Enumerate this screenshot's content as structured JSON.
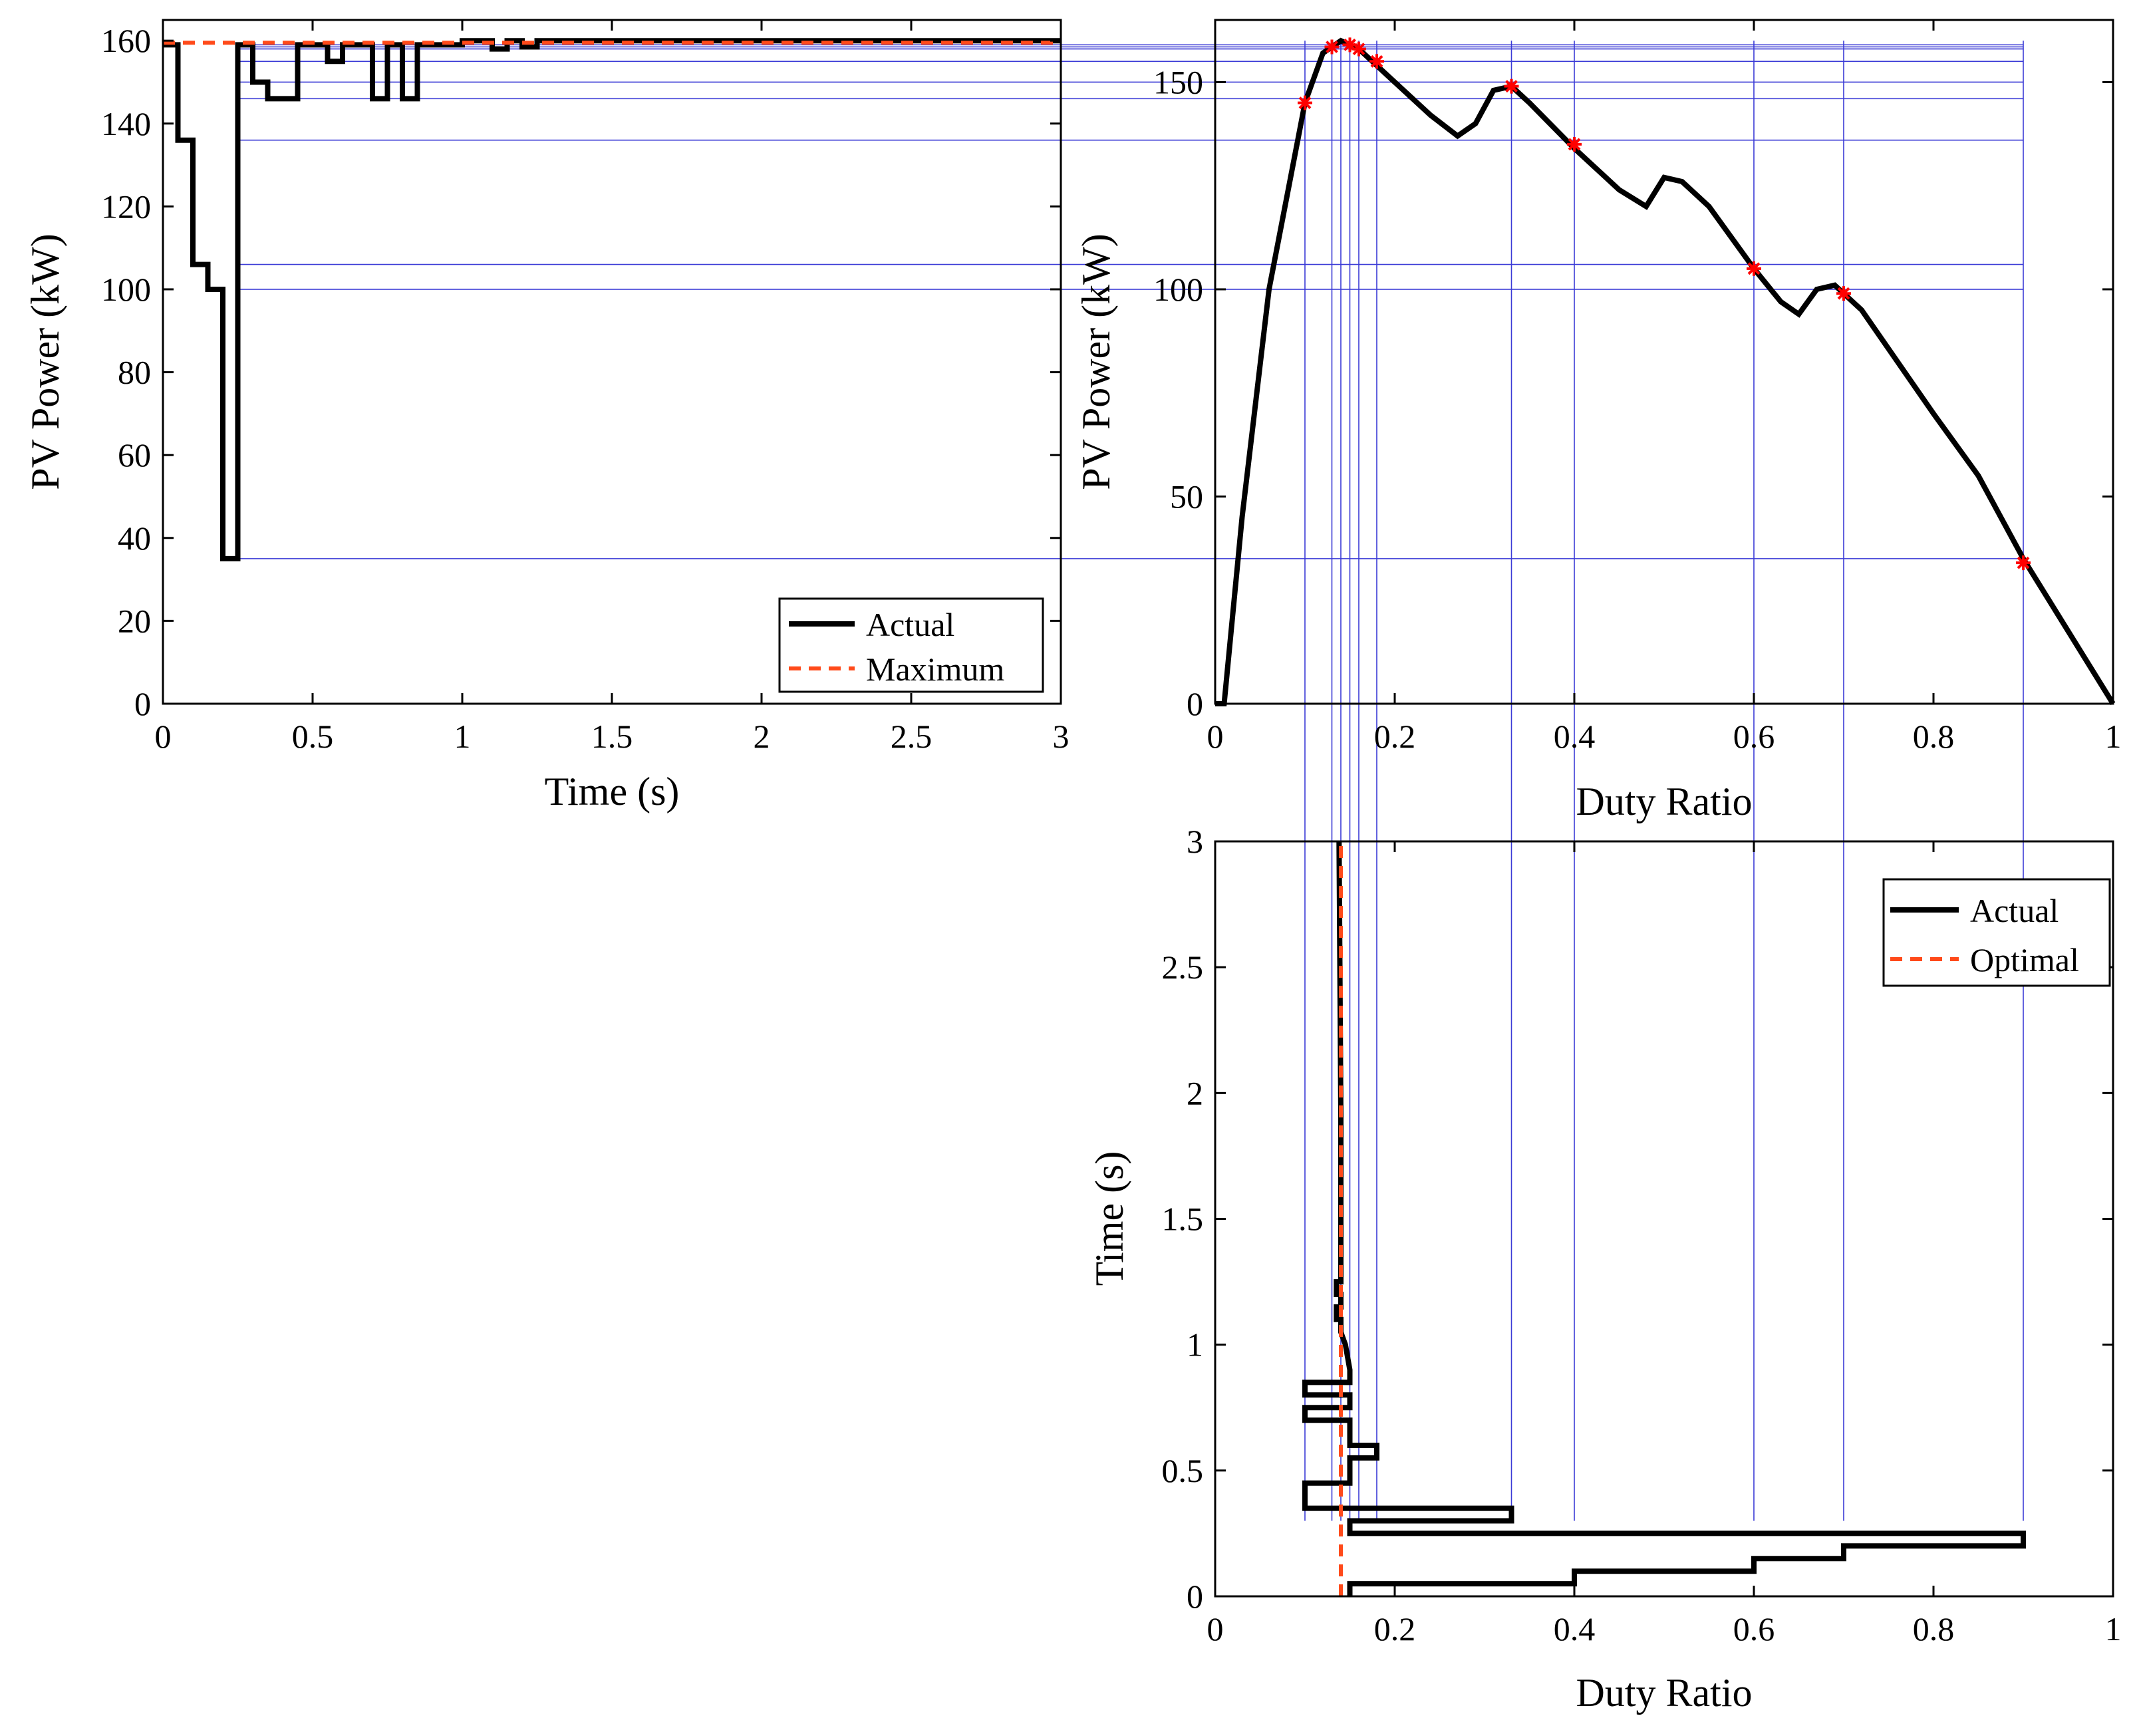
{
  "chart_data": [
    {
      "id": "power_time",
      "type": "line",
      "xlabel": "Time (s)",
      "ylabel": "PV Power (kW)",
      "xlim": [
        0,
        3
      ],
      "ylim": [
        0,
        165
      ],
      "xticks": [
        0,
        0.5,
        1,
        1.5,
        2,
        2.5,
        3
      ],
      "yticks": [
        0,
        20,
        40,
        60,
        80,
        100,
        120,
        140,
        160
      ],
      "legend": {
        "placement": "bottom-right",
        "entries": [
          "Actual",
          "Maximum"
        ]
      },
      "series": [
        {
          "name": "Actual",
          "color": "#000000",
          "style": "solid",
          "x": [
            0,
            0.05,
            0.05,
            0.1,
            0.1,
            0.15,
            0.15,
            0.2,
            0.2,
            0.25,
            0.25,
            0.3,
            0.3,
            0.35,
            0.35,
            0.45,
            0.45,
            0.55,
            0.55,
            0.6,
            0.6,
            0.7,
            0.7,
            0.75,
            0.75,
            0.8,
            0.8,
            0.85,
            0.85,
            1.0,
            1.0,
            1.1,
            1.1,
            1.15,
            1.15,
            1.2,
            1.2,
            1.25,
            1.25,
            3.0
          ],
          "y": [
            159,
            159,
            136,
            136,
            106,
            106,
            100,
            100,
            35,
            35,
            159,
            159,
            150,
            150,
            146,
            146,
            159,
            159,
            155,
            155,
            159,
            159,
            146,
            146,
            159,
            159,
            146,
            146,
            159,
            159,
            160,
            160,
            158,
            158,
            160,
            160,
            158.5,
            158.5,
            160,
            160
          ]
        },
        {
          "name": "Maximum",
          "color": "#ff4a1a",
          "style": "dashed",
          "x": [
            0,
            3
          ],
          "y": [
            159.5,
            159.5
          ]
        }
      ]
    },
    {
      "id": "power_duty",
      "type": "line",
      "xlabel": "Duty Ratio",
      "ylabel": "PV Power (kW)",
      "xlim": [
        0,
        1
      ],
      "ylim": [
        0,
        165
      ],
      "xticks": [
        0,
        0.2,
        0.4,
        0.6,
        0.8,
        1
      ],
      "yticks": [
        0,
        50,
        100,
        150
      ],
      "series": [
        {
          "name": "P-D curve",
          "color": "#000000",
          "style": "solid",
          "x": [
            0,
            0.01,
            0.03,
            0.06,
            0.1,
            0.12,
            0.14,
            0.16,
            0.2,
            0.24,
            0.27,
            0.29,
            0.31,
            0.33,
            0.35,
            0.4,
            0.45,
            0.48,
            0.5,
            0.52,
            0.55,
            0.6,
            0.63,
            0.65,
            0.67,
            0.69,
            0.72,
            0.8,
            0.85,
            0.9,
            1.0
          ],
          "y": [
            0,
            0,
            45,
            100,
            145,
            157,
            160,
            158,
            150,
            142,
            137,
            140,
            148,
            149,
            145,
            134,
            124,
            120,
            127,
            126,
            120,
            105,
            97,
            94,
            100,
            101,
            95,
            70,
            55,
            35,
            0
          ]
        },
        {
          "name": "Operating points",
          "color": "#ff0000",
          "style": "marker",
          "x": [
            0.1,
            0.13,
            0.15,
            0.16,
            0.18,
            0.33,
            0.4,
            0.6,
            0.7,
            0.9
          ],
          "y": [
            145,
            158.5,
            159,
            158,
            155,
            149,
            135,
            105,
            99,
            34
          ]
        }
      ]
    },
    {
      "id": "time_duty",
      "type": "line",
      "xlabel": "Duty Ratio",
      "ylabel": "Time (s)",
      "xlim": [
        0,
        1
      ],
      "ylim": [
        0,
        3
      ],
      "xticks": [
        0,
        0.2,
        0.4,
        0.6,
        0.8,
        1
      ],
      "yticks": [
        0,
        0.5,
        1,
        1.5,
        2,
        2.5,
        3
      ],
      "legend": {
        "placement": "top-right",
        "entries": [
          "Actual",
          "Optimal"
        ]
      },
      "series": [
        {
          "name": "Actual",
          "color": "#000000",
          "style": "solid",
          "x": [
            0.15,
            0.15,
            0.4,
            0.4,
            0.6,
            0.6,
            0.7,
            0.7,
            0.9,
            0.9,
            0.15,
            0.15,
            0.33,
            0.33,
            0.1,
            0.1,
            0.15,
            0.15,
            0.18,
            0.18,
            0.15,
            0.15,
            0.1,
            0.1,
            0.15,
            0.15,
            0.1,
            0.1,
            0.15,
            0.15,
            0.145,
            0.14,
            0.14,
            0.135,
            0.135,
            0.14,
            0.14,
            0.135,
            0.135,
            0.14,
            0.14,
            0.138
          ],
          "y": [
            0,
            0.05,
            0.05,
            0.1,
            0.1,
            0.15,
            0.15,
            0.2,
            0.2,
            0.25,
            0.25,
            0.3,
            0.3,
            0.35,
            0.35,
            0.45,
            0.45,
            0.55,
            0.55,
            0.6,
            0.6,
            0.7,
            0.7,
            0.75,
            0.75,
            0.8,
            0.8,
            0.85,
            0.85,
            0.9,
            1.0,
            1.05,
            1.1,
            1.1,
            1.15,
            1.15,
            1.2,
            1.2,
            1.25,
            1.25,
            1.9,
            3.0
          ]
        },
        {
          "name": "Optimal",
          "color": "#ff4a1a",
          "style": "dashed",
          "x": [
            0.14,
            0.14
          ],
          "y": [
            0,
            3
          ]
        }
      ]
    }
  ],
  "colors": {
    "guide": "#3a3ad6",
    "marker": "#ff0000",
    "dashed": "#ff4a1a",
    "axis": "#000000"
  },
  "guides": {
    "power_levels": [
      159,
      158.5,
      158,
      155,
      150,
      146,
      136,
      106,
      100,
      35
    ],
    "duty_levels": [
      0.1,
      0.13,
      0.14,
      0.15,
      0.16,
      0.18,
      0.33,
      0.4,
      0.6,
      0.7,
      0.9
    ]
  }
}
